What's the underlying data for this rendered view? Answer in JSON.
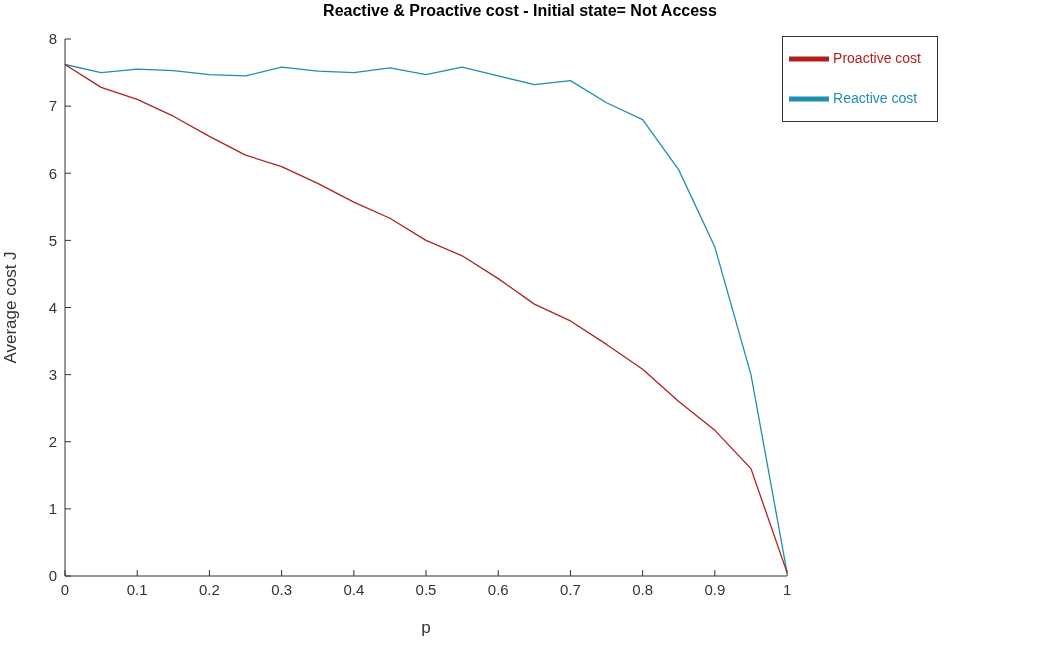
{
  "chart_data": {
    "type": "line",
    "title": "Reactive & Proactive cost - Initial state= Not Access",
    "xlabel": "p",
    "ylabel": "Average cost J",
    "x": [
      0,
      0.05,
      0.1,
      0.15,
      0.2,
      0.25,
      0.3,
      0.35,
      0.4,
      0.45,
      0.5,
      0.55,
      0.6,
      0.65,
      0.7,
      0.75,
      0.8,
      0.85,
      0.9,
      0.95,
      1
    ],
    "series": [
      {
        "name": "Reactive cost",
        "color": "#1f8fb0",
        "values": [
          7.62,
          7.5,
          7.55,
          7.53,
          7.47,
          7.45,
          7.58,
          7.52,
          7.5,
          7.57,
          7.47,
          7.58,
          7.45,
          7.32,
          7.38,
          7.05,
          6.8,
          6.05,
          4.9,
          3.0,
          0.05
        ]
      },
      {
        "name": "Proactive cost",
        "color": "#b02020",
        "values": [
          7.62,
          7.28,
          7.1,
          6.85,
          6.55,
          6.27,
          6.1,
          5.85,
          5.57,
          5.33,
          5.0,
          4.77,
          4.43,
          4.05,
          3.8,
          3.45,
          3.08,
          2.6,
          2.17,
          1.6,
          0.05
        ]
      }
    ],
    "xlim": [
      0,
      1
    ],
    "xticks": [
      0,
      0.1,
      0.2,
      0.3,
      0.4,
      0.5,
      0.6,
      0.7,
      0.8,
      0.9,
      1
    ],
    "ylim": [
      0,
      8
    ],
    "yticks": [
      0,
      1,
      2,
      3,
      4,
      5,
      6,
      7,
      8
    ],
    "grid": false,
    "legend": "top right",
    "marker": "none",
    "line_style": "solid"
  }
}
